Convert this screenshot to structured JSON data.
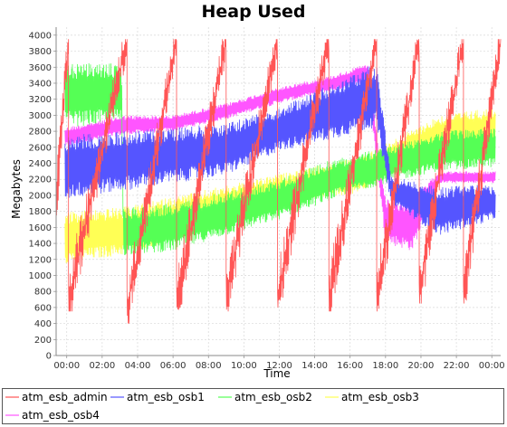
{
  "chart_data": {
    "type": "line",
    "title": "Heap Used",
    "xlabel": "Time",
    "ylabel": "Megabytes",
    "x_ticks": [
      "00:00",
      "02:00",
      "04:00",
      "06:00",
      "08:00",
      "10:00",
      "12:00",
      "14:00",
      "16:00",
      "18:00",
      "20:00",
      "22:00",
      "00:00"
    ],
    "y_ticks": [
      0,
      200,
      400,
      600,
      800,
      1000,
      1200,
      1400,
      1600,
      1800,
      2000,
      2200,
      2400,
      2600,
      2800,
      3000,
      3200,
      3400,
      3600,
      3800,
      4000
    ],
    "ylim": [
      0,
      4100
    ],
    "grid": true,
    "legend_position": "bottom",
    "series": [
      {
        "name": "atm_esb_admin",
        "color": "#ff5555",
        "style": "sawtooth",
        "cycles": [
          [
            -0.6,
            1900,
            3950
          ],
          [
            0.1,
            700,
            3950
          ],
          [
            3.4,
            550,
            3950
          ],
          [
            6.2,
            650,
            3950
          ],
          [
            9.0,
            700,
            3950
          ],
          [
            11.9,
            750,
            3950
          ],
          [
            14.8,
            700,
            3950
          ],
          [
            17.5,
            700,
            3950
          ],
          [
            19.9,
            800,
            3950
          ],
          [
            22.4,
            800,
            3950
          ],
          [
            24.5,
            1200,
            2600
          ]
        ]
      },
      {
        "name": "atm_esb_osb1",
        "color": "#5555ff",
        "style": "band",
        "points": [
          [
            -0.1,
            1950,
            2750
          ],
          [
            3.0,
            2050,
            2800
          ],
          [
            6.0,
            2150,
            2850
          ],
          [
            9.0,
            2250,
            2900
          ],
          [
            12.0,
            2550,
            3100
          ],
          [
            15.0,
            2700,
            3400
          ],
          [
            17.5,
            2850,
            3650
          ],
          [
            18.3,
            1900,
            2250
          ],
          [
            21.0,
            1500,
            2100
          ],
          [
            23.5,
            1650,
            2150
          ],
          [
            24.2,
            1700,
            2100
          ]
        ]
      },
      {
        "name": "atm_esb_osb2",
        "color": "#55ff55",
        "style": "band",
        "points": [
          [
            -0.1,
            2850,
            3650
          ],
          [
            3.1,
            2900,
            3650
          ],
          [
            3.2,
            1250,
            1850
          ],
          [
            6.0,
            1300,
            1900
          ],
          [
            9.0,
            1500,
            2050
          ],
          [
            12.0,
            1700,
            2200
          ],
          [
            15.0,
            1950,
            2450
          ],
          [
            18.0,
            2150,
            2600
          ],
          [
            21.0,
            2300,
            2800
          ],
          [
            24.2,
            2350,
            2850
          ]
        ]
      },
      {
        "name": "atm_esb_osb3",
        "color": "#ffff55",
        "style": "band",
        "points": [
          [
            -0.1,
            1150,
            1800
          ],
          [
            3.1,
            1250,
            1850
          ],
          [
            13.8,
            1950,
            2350
          ],
          [
            16.0,
            2000,
            2450
          ],
          [
            18.0,
            2200,
            2650
          ],
          [
            21.0,
            2500,
            3000
          ],
          [
            24.2,
            2600,
            3100
          ]
        ]
      },
      {
        "name": "atm_esb_osb4",
        "color": "#ff55ff",
        "style": "band",
        "points": [
          [
            -0.1,
            2600,
            2850
          ],
          [
            3.1,
            2750,
            3000
          ],
          [
            6.0,
            2800,
            3000
          ],
          [
            9.0,
            2950,
            3150
          ],
          [
            12.0,
            3150,
            3350
          ],
          [
            15.0,
            3300,
            3500
          ],
          [
            17.0,
            3400,
            3650
          ],
          [
            18.0,
            1400,
            1950
          ],
          [
            19.5,
            1300,
            1950
          ],
          [
            21.0,
            2150,
            2300
          ],
          [
            24.2,
            2150,
            2300
          ]
        ]
      }
    ]
  }
}
